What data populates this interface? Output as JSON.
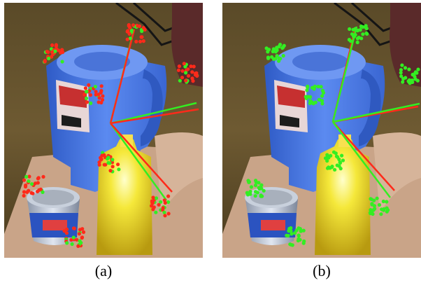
{
  "captions": {
    "a": "(a)",
    "b": "(b)"
  },
  "colors": {
    "match_red": "#ff2a1a",
    "match_green": "#33ee22",
    "axis_red": "#ff2a1a",
    "axis_green": "#33ee22"
  },
  "icons": {
    "scene": "pitcher-mustard-can-scene",
    "keypoints": "keypoint-cluster-markers",
    "axes": "pose-axes-overlay"
  }
}
